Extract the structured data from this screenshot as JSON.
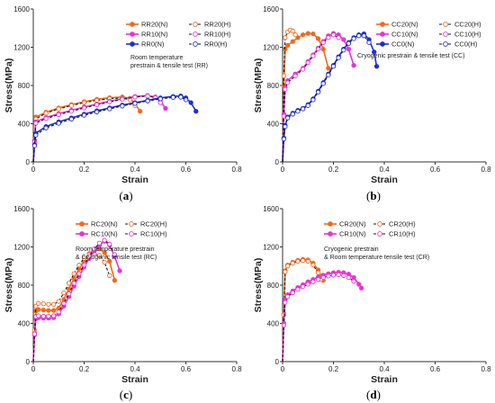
{
  "figure": {
    "colors": {
      "s20": "#f06a1c",
      "s10": "#e832d8",
      "s0": "#1f2fd0"
    },
    "icons": [
      "filled-circle-marker",
      "open-circle-marker"
    ]
  },
  "chart_data": [
    {
      "id": "a",
      "type": "line",
      "panel_label": "a",
      "xlabel": "Strain",
      "ylabel": "Stress(MPa)",
      "xlim": [
        0,
        0.8
      ],
      "ylim": [
        0,
        1600
      ],
      "xticks": [
        "0",
        "0.2",
        "0.4",
        "0.6",
        "0.8"
      ],
      "yticks": [
        "0",
        "400",
        "800",
        "1200",
        "1600"
      ],
      "grid": false,
      "legend_position": "top-right",
      "annotation": [
        "Room temperature",
        "prestrain & tensile test (RR)"
      ],
      "series": [
        {
          "name": "RR20(N)",
          "color": "s20",
          "dash": false,
          "marker": "filled",
          "x": [
            0,
            0.005,
            0.01,
            0.05,
            0.1,
            0.15,
            0.2,
            0.25,
            0.3,
            0.35,
            0.38,
            0.4,
            0.42
          ],
          "y": [
            0,
            230,
            470,
            520,
            565,
            600,
            630,
            655,
            672,
            680,
            665,
            610,
            530
          ]
        },
        {
          "name": "RR20(H)",
          "color": "s20",
          "dash": true,
          "marker": "open",
          "x": [
            0,
            0.005,
            0.01,
            0.05,
            0.1,
            0.15,
            0.2,
            0.25,
            0.3,
            0.35,
            0.38,
            0.4
          ],
          "y": [
            0,
            220,
            450,
            510,
            555,
            590,
            620,
            645,
            662,
            668,
            650,
            590
          ]
        },
        {
          "name": "RR10(N)",
          "color": "s10",
          "dash": false,
          "marker": "filled",
          "x": [
            0,
            0.005,
            0.01,
            0.05,
            0.1,
            0.15,
            0.2,
            0.25,
            0.3,
            0.35,
            0.4,
            0.45,
            0.48,
            0.5,
            0.52
          ],
          "y": [
            0,
            220,
            420,
            465,
            505,
            540,
            575,
            605,
            635,
            660,
            685,
            695,
            680,
            640,
            560
          ]
        },
        {
          "name": "RR10(H)",
          "color": "s10",
          "dash": true,
          "marker": "open",
          "x": [
            0,
            0.005,
            0.01,
            0.05,
            0.1,
            0.15,
            0.2,
            0.25,
            0.3,
            0.35,
            0.4,
            0.45,
            0.48,
            0.5
          ],
          "y": [
            0,
            210,
            405,
            455,
            495,
            530,
            565,
            598,
            628,
            655,
            678,
            690,
            672,
            620
          ]
        },
        {
          "name": "RR0(N)",
          "color": "s0",
          "dash": false,
          "marker": "filled",
          "x": [
            0,
            0.005,
            0.01,
            0.05,
            0.1,
            0.15,
            0.2,
            0.25,
            0.3,
            0.35,
            0.4,
            0.45,
            0.5,
            0.55,
            0.58,
            0.6,
            0.62,
            0.64
          ],
          "y": [
            0,
            180,
            300,
            370,
            420,
            460,
            500,
            535,
            565,
            595,
            620,
            645,
            670,
            685,
            690,
            670,
            620,
            530
          ]
        },
        {
          "name": "RR0(H)",
          "color": "s0",
          "dash": true,
          "marker": "open",
          "x": [
            0,
            0.005,
            0.01,
            0.05,
            0.1,
            0.15,
            0.2,
            0.25,
            0.3,
            0.35,
            0.4,
            0.45,
            0.5,
            0.55,
            0.58,
            0.6
          ],
          "y": [
            0,
            170,
            280,
            355,
            405,
            448,
            488,
            522,
            555,
            585,
            612,
            638,
            660,
            675,
            678,
            650
          ]
        }
      ]
    },
    {
      "id": "b",
      "type": "line",
      "panel_label": "b",
      "xlabel": "Strain",
      "ylabel": "Stress(MPa)",
      "xlim": [
        0,
        0.8
      ],
      "ylim": [
        0,
        1600
      ],
      "xticks": [
        "0",
        "0.2",
        "0.4",
        "0.6",
        "0.8"
      ],
      "yticks": [
        "0",
        "400",
        "800",
        "1200",
        "1600"
      ],
      "grid": false,
      "legend_position": "top-right",
      "annotation": [
        "Cryogenic prestrain & tensile test (CC)"
      ],
      "series": [
        {
          "name": "CC20(N)",
          "color": "s20",
          "dash": false,
          "marker": "filled",
          "x": [
            0,
            0.005,
            0.01,
            0.02,
            0.04,
            0.06,
            0.08,
            0.1,
            0.12,
            0.14,
            0.16,
            0.18
          ],
          "y": [
            0,
            800,
            1180,
            1220,
            1260,
            1300,
            1330,
            1345,
            1340,
            1290,
            1180,
            980
          ]
        },
        {
          "name": "CC20(H)",
          "color": "s20",
          "dash": true,
          "marker": "open",
          "x": [
            0,
            0.005,
            0.01,
            0.02,
            0.03,
            0.04,
            0.05
          ],
          "y": [
            0,
            900,
            1300,
            1360,
            1380,
            1370,
            1330
          ]
        },
        {
          "name": "CC10(N)",
          "color": "s10",
          "dash": false,
          "marker": "filled",
          "x": [
            0,
            0.005,
            0.01,
            0.02,
            0.05,
            0.08,
            0.1,
            0.12,
            0.14,
            0.16,
            0.18,
            0.2,
            0.22,
            0.24,
            0.26,
            0.28
          ],
          "y": [
            0,
            500,
            780,
            850,
            920,
            980,
            1050,
            1120,
            1190,
            1260,
            1320,
            1345,
            1330,
            1280,
            1180,
            1010
          ]
        },
        {
          "name": "CC10(H)",
          "color": "s10",
          "dash": true,
          "marker": "open",
          "x": [
            0,
            0.005,
            0.01,
            0.02,
            0.05,
            0.08,
            0.1,
            0.12,
            0.14,
            0.16,
            0.18,
            0.2,
            0.22
          ],
          "y": [
            0,
            480,
            760,
            830,
            900,
            970,
            1040,
            1110,
            1180,
            1250,
            1300,
            1330,
            1300
          ]
        },
        {
          "name": "CC0(N)",
          "color": "s0",
          "dash": false,
          "marker": "filled",
          "x": [
            0,
            0.005,
            0.01,
            0.02,
            0.04,
            0.06,
            0.08,
            0.1,
            0.12,
            0.14,
            0.16,
            0.18,
            0.2,
            0.22,
            0.24,
            0.26,
            0.28,
            0.3,
            0.32,
            0.34,
            0.36,
            0.37
          ],
          "y": [
            0,
            250,
            380,
            470,
            510,
            540,
            560,
            600,
            660,
            740,
            830,
            920,
            1010,
            1100,
            1180,
            1250,
            1300,
            1330,
            1340,
            1280,
            1150,
            1000
          ]
        },
        {
          "name": "CC0(H)",
          "color": "s0",
          "dash": true,
          "marker": "open",
          "x": [
            0,
            0.005,
            0.01,
            0.02,
            0.04,
            0.06,
            0.08,
            0.1,
            0.12,
            0.14,
            0.16,
            0.18,
            0.2,
            0.22,
            0.24,
            0.26,
            0.28,
            0.3,
            0.32,
            0.34
          ],
          "y": [
            0,
            240,
            370,
            460,
            500,
            530,
            555,
            590,
            650,
            730,
            820,
            910,
            1000,
            1090,
            1170,
            1240,
            1290,
            1320,
            1320,
            1250
          ]
        }
      ]
    },
    {
      "id": "c",
      "type": "line",
      "panel_label": "c",
      "xlabel": "Strain",
      "ylabel": "Stress(MPa)",
      "xlim": [
        0,
        0.8
      ],
      "ylim": [
        0,
        1600
      ],
      "xticks": [
        "0",
        "0.2",
        "0.4",
        "0.6",
        "0.8"
      ],
      "yticks": [
        "0",
        "400",
        "800",
        "1200",
        "1600"
      ],
      "grid": false,
      "legend_position": "top-left",
      "annotation": [
        "Room temperature prestrain",
        "& Cryogenic tensile test (RC)"
      ],
      "series": [
        {
          "name": "RC20(N)",
          "color": "s20",
          "dash": false,
          "marker": "filled",
          "x": [
            0,
            0.005,
            0.01,
            0.02,
            0.04,
            0.06,
            0.08,
            0.1,
            0.12,
            0.14,
            0.16,
            0.18,
            0.2,
            0.22,
            0.24,
            0.26,
            0.28,
            0.3,
            0.32
          ],
          "y": [
            0,
            300,
            530,
            545,
            540,
            535,
            535,
            560,
            650,
            760,
            870,
            970,
            1060,
            1130,
            1170,
            1180,
            1140,
            1050,
            850
          ]
        },
        {
          "name": "RC20(H)",
          "color": "s20",
          "dash": true,
          "marker": "open",
          "x": [
            0,
            0.005,
            0.01,
            0.02,
            0.04,
            0.06,
            0.08,
            0.1,
            0.12,
            0.14,
            0.16,
            0.18,
            0.2,
            0.22,
            0.24,
            0.26,
            0.28,
            0.3
          ],
          "y": [
            0,
            330,
            580,
            610,
            605,
            600,
            600,
            630,
            720,
            820,
            920,
            1010,
            1080,
            1120,
            1130,
            1110,
            1040,
            900
          ]
        },
        {
          "name": "RC10(N)",
          "color": "s10",
          "dash": false,
          "marker": "filled",
          "x": [
            0,
            0.005,
            0.01,
            0.02,
            0.04,
            0.06,
            0.08,
            0.1,
            0.12,
            0.14,
            0.16,
            0.18,
            0.2,
            0.22,
            0.24,
            0.26,
            0.28,
            0.3,
            0.32,
            0.34
          ],
          "y": [
            0,
            280,
            450,
            460,
            455,
            455,
            460,
            500,
            580,
            680,
            790,
            890,
            990,
            1080,
            1160,
            1220,
            1260,
            1220,
            1100,
            950
          ]
        },
        {
          "name": "RC10(H)",
          "color": "s10",
          "dash": true,
          "marker": "open",
          "x": [
            0,
            0.005,
            0.01,
            0.02,
            0.04,
            0.06,
            0.08,
            0.1,
            0.12,
            0.14,
            0.16,
            0.18,
            0.2,
            0.22,
            0.24,
            0.26,
            0.28,
            0.3,
            0.32
          ],
          "y": [
            0,
            290,
            470,
            480,
            475,
            475,
            480,
            520,
            610,
            710,
            820,
            920,
            1010,
            1100,
            1180,
            1240,
            1270,
            1230,
            1120
          ]
        }
      ]
    },
    {
      "id": "d",
      "type": "line",
      "panel_label": "d",
      "xlabel": "Strain",
      "ylabel": "Stress(MPa)",
      "xlim": [
        0,
        0.8
      ],
      "ylim": [
        0,
        1600
      ],
      "xticks": [
        "0",
        "0.2",
        "0.4",
        "0.6",
        "0.8"
      ],
      "yticks": [
        "0",
        "400",
        "800",
        "1200",
        "1600"
      ],
      "grid": false,
      "legend_position": "top-right",
      "annotation": [
        "Cryogenic prestrain",
        "& Room temperature tensile test (CR)"
      ],
      "series": [
        {
          "name": "CR20(N)",
          "color": "s20",
          "dash": false,
          "marker": "filled",
          "x": [
            0,
            0.005,
            0.01,
            0.02,
            0.04,
            0.06,
            0.08,
            0.1,
            0.12,
            0.14,
            0.16
          ],
          "y": [
            0,
            500,
            950,
            1010,
            1040,
            1060,
            1070,
            1065,
            1030,
            960,
            850
          ]
        },
        {
          "name": "CR20(H)",
          "color": "s20",
          "dash": true,
          "marker": "open",
          "x": [
            0,
            0.005,
            0.01,
            0.02,
            0.04,
            0.06,
            0.08,
            0.1,
            0.12,
            0.14,
            0.15
          ],
          "y": [
            0,
            490,
            940,
            1000,
            1030,
            1050,
            1058,
            1050,
            1010,
            930,
            860
          ]
        },
        {
          "name": "CR10(N)",
          "color": "s10",
          "dash": false,
          "marker": "filled",
          "x": [
            0,
            0.005,
            0.01,
            0.02,
            0.04,
            0.06,
            0.08,
            0.1,
            0.12,
            0.14,
            0.16,
            0.18,
            0.2,
            0.22,
            0.24,
            0.26,
            0.28,
            0.3,
            0.31
          ],
          "y": [
            0,
            400,
            650,
            700,
            740,
            775,
            805,
            835,
            860,
            885,
            905,
            920,
            930,
            935,
            930,
            915,
            880,
            810,
            770
          ]
        },
        {
          "name": "CR10(H)",
          "color": "s10",
          "dash": true,
          "marker": "open",
          "x": [
            0,
            0.005,
            0.01,
            0.02,
            0.04,
            0.06,
            0.08,
            0.1,
            0.12,
            0.14,
            0.16,
            0.18,
            0.2,
            0.22,
            0.24,
            0.26,
            0.28
          ],
          "y": [
            0,
            380,
            620,
            680,
            720,
            755,
            785,
            810,
            835,
            860,
            880,
            895,
            905,
            910,
            900,
            880,
            840
          ]
        }
      ]
    }
  ]
}
